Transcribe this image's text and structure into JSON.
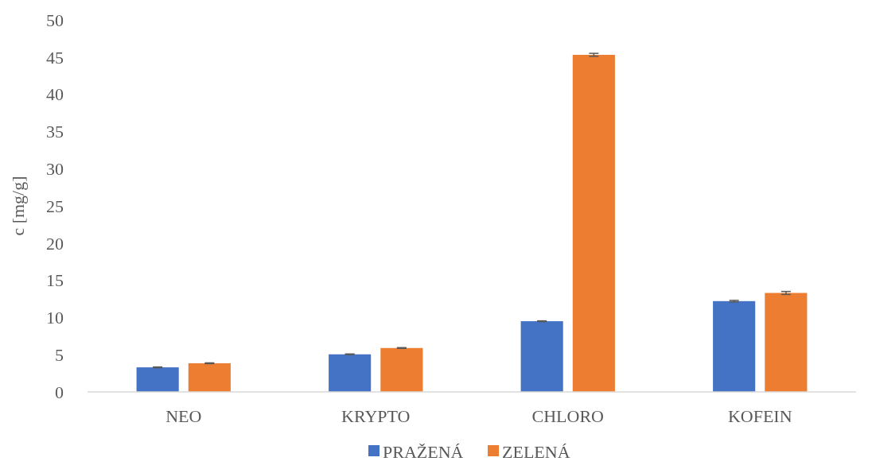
{
  "chart_data": {
    "type": "bar",
    "ylabel": "c [mg/g]",
    "categories": [
      "NEO",
      "KRYPTO",
      "CHLORO",
      "KOFEIN"
    ],
    "series": [
      {
        "name": "PRAŽENÁ",
        "color": "#4472c4",
        "values": [
          3.3,
          5.05,
          9.5,
          12.2
        ],
        "errors": [
          0.05,
          0.05,
          0.05,
          0.1
        ]
      },
      {
        "name": "ZELENÁ",
        "color": "#ed7d31",
        "values": [
          3.85,
          5.9,
          45.3,
          13.3
        ],
        "errors": [
          0.05,
          0.05,
          0.2,
          0.2
        ]
      }
    ],
    "ylim": [
      0,
      50
    ],
    "yticks": [
      0,
      5,
      10,
      15,
      20,
      25,
      30,
      35,
      40,
      45,
      50
    ],
    "grid": false,
    "legend": "bottom"
  }
}
